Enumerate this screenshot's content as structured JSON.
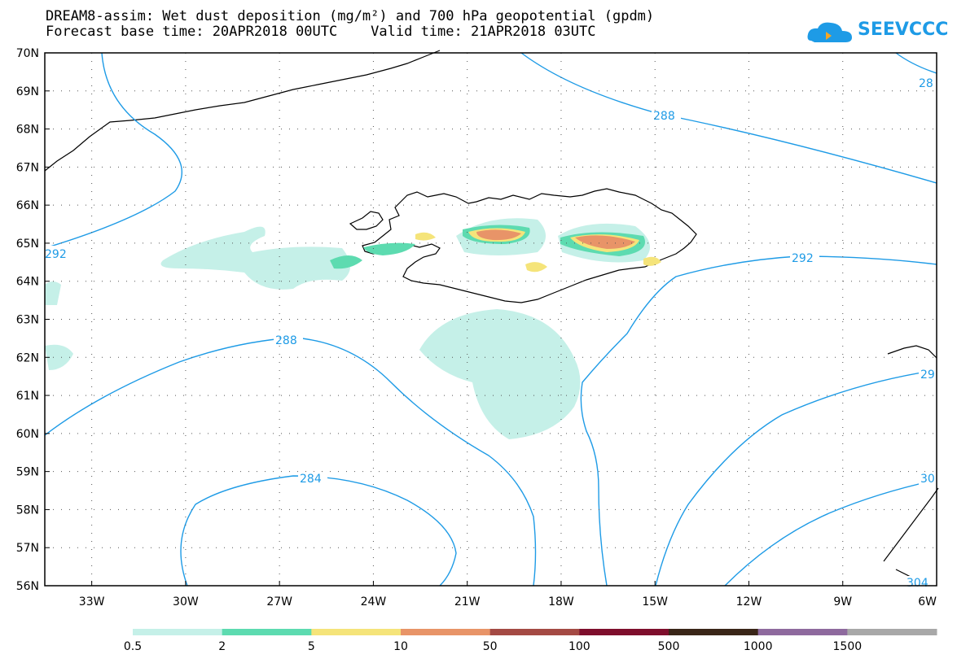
{
  "title": {
    "line1": "DREAM8-assim: Wet dust deposition (mg/m²) and 700 hPa geopotential (gpdm)",
    "line2": "Forecast base time: 20APR2018 00UTC    Valid time: 21APR2018 03UTC"
  },
  "logo": {
    "text": "SEEVCCC",
    "color": "#1e9be6"
  },
  "map": {
    "lon_range": [
      -34.5,
      -6
    ],
    "lat_range": [
      56,
      70
    ],
    "lon_ticks": [
      "33W",
      "30W",
      "27W",
      "24W",
      "21W",
      "18W",
      "15W",
      "12W",
      "9W",
      "6W"
    ],
    "lat_ticks": [
      "70N",
      "69N",
      "68N",
      "67N",
      "66N",
      "65N",
      "64N",
      "63N",
      "62N",
      "61N",
      "60N",
      "59N",
      "58N",
      "57N",
      "56N"
    ],
    "grid": "dotted",
    "contour_color": "#1e9be6",
    "contour_labels": [
      "288",
      "292",
      "288",
      "284",
      "292",
      "28",
      "29",
      "30",
      "304"
    ]
  },
  "colorbar": {
    "labels": [
      "0.5",
      "2",
      "5",
      "10",
      "50",
      "100",
      "500",
      "1000",
      "1500"
    ],
    "colors": [
      "#c5f0e8",
      "#5ddbb0",
      "#f5e47a",
      "#e89468",
      "#a44a44",
      "#7e0e2c",
      "#3a2618",
      "#8e6a9e",
      "#a8a8a8"
    ]
  }
}
